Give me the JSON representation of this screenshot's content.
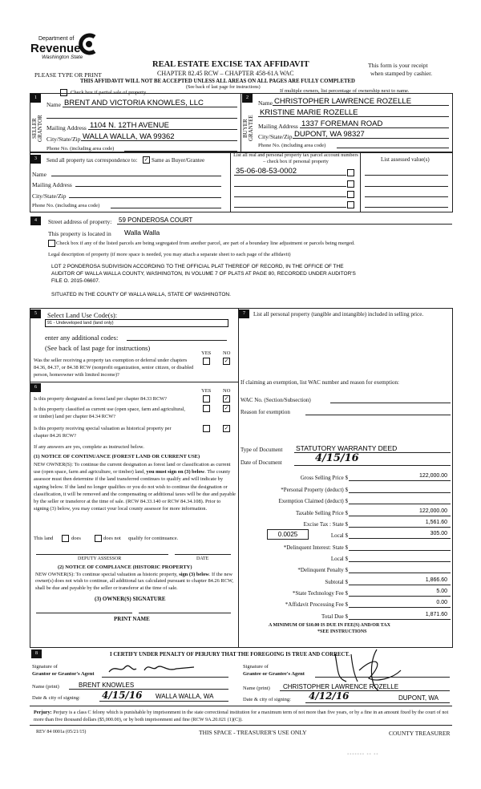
{
  "header": {
    "dept_of": "Department of",
    "revenue": "Revenue",
    "state": "Washington State",
    "title": "REAL ESTATE EXCISE TAX AFFIDAVIT",
    "chapter": "CHAPTER 82.45 RCW – CHAPTER 458-61A WAC",
    "type_print": "PLEASE TYPE OR PRINT",
    "receipt1": "This form is your receipt",
    "receipt2": "when stamped by cashier.",
    "warning": "THIS AFFIDAVIT WILL NOT BE ACCEPTED UNLESS ALL AREAS ON ALL PAGES ARE FULLY COMPLETED",
    "see_back": "(See back of last page for instructions)",
    "partial_sale": "Check box if partial sale of property",
    "multiple_owners": "If multiple owners, list percentage of ownership next to name."
  },
  "seller": {
    "num": "1",
    "side": "SELLER GRANTOR",
    "name_label": "Name",
    "name": "BRENT AND VICTORIA KNOWLES, LLC",
    "mail_label": "Mailing Address",
    "mail": "1104 N. 12TH AVENUE",
    "city_label": "City/State/Zip",
    "city": "WALLA WALLA, WA  99362",
    "phone_label": "Phone No. (including area code)"
  },
  "buyer": {
    "num": "2",
    "side": "BUYER GRANTEE",
    "name_label": "Name",
    "name": "CHRISTOPHER LAWRENCE ROZELLE",
    "name2": "KRISTINE MARIE ROZELLE",
    "mail_label": "Mailing Address",
    "mail": "1337 FOREMAN ROAD",
    "city_label": "City/State/Zip",
    "city": "DUPONT, WA  98327",
    "phone_label": "Phone No. (including area code)"
  },
  "sec3": {
    "num": "3",
    "send": "Send all property tax correspondence to:",
    "same": "Same as Buyer/Grantee",
    "same_checked": true,
    "name": "Name",
    "mail": "Mailing Address",
    "city": "City/State/Zip",
    "phone": "Phone No. (including area code)",
    "parcel_header": "List all real and personal property tax parcel account numbers – check box if personal property",
    "assessed_header": "List assessed value(s)",
    "parcel": "35-06-08-53-0002"
  },
  "sec4": {
    "num": "4",
    "street_label": "Street address of property:",
    "street": "59 PONDEROSA COURT",
    "located_label": "This property is located in",
    "located": "Walla Walla",
    "segregated": "Check box if any of the listed parcels are being segregated from another parcel, are part of a boundary line adjustment or parcels being merged.",
    "legal_label": "Legal description of property (if more space is needed, you may attach a separate sheet to each page of the affidavit)",
    "legal1": "LOT 2 PONDEROSA SUDIVISION ACCORDING TO THE OFFICIAL PLAT THEREOF OF RECORD, IN THE OFFICE OF THE",
    "legal2": "AUDITOR OF WALLA WALLA COUNTY, WASHINGTON, IN VOLUME 7 OF PLATS AT PAGE 80, RECORDED UNDER AUDITOR'S",
    "legal3": "FILE O. 2015-06607.",
    "legal4": "SITUATED IN THE COUNTY OF WALLA WALLA, STATE OF WASHINGTON."
  },
  "sec5": {
    "num": "5",
    "select": "Select Land Use Code(s):",
    "code": "91 - Undeveloped land (land only)",
    "additional": "enter any additional codes:",
    "see_back": "(See back of last page for instructions)",
    "yes": "YES",
    "no": "NO",
    "question": "Was the seller receiving a property tax exemption or deferral under chapters 84.36, 84.37, or 84.38 RCW (nonprofit organization, senior citizen, or disabled person, homeowner with limited income)?"
  },
  "sec6": {
    "num": "6",
    "yes": "YES",
    "no": "NO",
    "q1": "Is this property designated as forest land per chapter 84.33 RCW?",
    "q2": "Is this property classified as current use (open space, farm and agricultural, or timber) land per chapter 84.34 RCW?",
    "q3": "Is this property receiving special valuation as historical property per chapter 84.26 RCW?",
    "if_yes": "If any answers are yes, complete as instructed below.",
    "n1_title": "(1) NOTICE OF CONTINUANCE  (FOREST LAND OR CURRENT USE)",
    "n1_a": "NEW OWNER(S): To continue the current designation as forest land or classification as current use (open space, farm and agriculture, or timber) land, ",
    "n1_bold": "you must sign on (3) below",
    "n1_b": ". The county assessor must then determine if the land transferred continues to qualify and will indicate by signing below. If the land no longer qualifies or you do not wish to continue the designation or classification, it will be removed and the compensating or additional taxes will be due and payable by the seller or transferor at the time of sale. (RCW 84.33.140 or RCW 84.34.108). Prior to signing (3) below, you may contact your local county assessor for more information.",
    "this_land": "This land",
    "does": "does",
    "does_not": "does not",
    "qualify": "qualify for continuance.",
    "deputy": "DEPUTY ASSESSOR",
    "date": "DATE",
    "n2_title": "(2) NOTICE OF COMPLIANCE (HISTORIC PROPERTY)",
    "n2_a": "NEW OWNER(S): To continue special valuation as historic property, ",
    "n2_bold": "sign (3) below",
    "n2_b": ". If the new owner(s) does not wish to continue, all additional tax calculated pursuant to chapter 84.26 RCW, shall be due and payable by the seller or transferor at the time of sale.",
    "n3_title": "(3)  OWNER(S) SIGNATURE",
    "print_name": "PRINT NAME"
  },
  "sec7": {
    "num": "7",
    "list": "List all  personal property (tangible and intangible) included in selling price.",
    "claiming": "If claiming an exemption, list WAC number and reason for exemption:",
    "wac": "WAC No. (Section/Subsection)",
    "reason": "Reason for exemption",
    "doc_type_label": "Type of Document",
    "doc_type": "STATUTORY WARRANTY DEED",
    "doc_date_label": "Date of Document",
    "doc_date": "4/15/16",
    "local_rate": "0.0025",
    "rows": [
      {
        "label": "Gross Selling Price $",
        "value": "122,000.00"
      },
      {
        "label": "*Personal Property (deduct) $",
        "value": ""
      },
      {
        "label": "Exemption Claimed (deduct) $",
        "value": ""
      },
      {
        "label": "Taxable Selling Price $",
        "value": "122,000.00"
      },
      {
        "label": "Excise Tax : State $",
        "value": "1,561.60"
      },
      {
        "label": "Local $",
        "value": "305.00"
      },
      {
        "label": "*Delinquent Interest: State $",
        "value": ""
      },
      {
        "label": "Local $",
        "value": ""
      },
      {
        "label": "*Delinquent Penalty $",
        "value": ""
      },
      {
        "label": "Subtotal $",
        "value": "1,866.60"
      },
      {
        "label": "*State Technology Fee $",
        "value": "5.00"
      },
      {
        "label": "*Affidavit Processing Fee $",
        "value": "0.00"
      },
      {
        "label": "Total Due $",
        "value": "1,871.60"
      }
    ],
    "minimum": "A MINIMUM OF $10.00 IS DUE IN FEE(S) AND/OR TAX",
    "see_instr": "*SEE INSTRUCTIONS"
  },
  "sec8": {
    "num": "8",
    "certify": "I CERTIFY UNDER PENALTY OF PERJURY THAT THE FOREGOING IS TRUE AND CORRECT.",
    "sig_of": "Signature of",
    "grantor_agent": "Grantor or Grantor's Agent",
    "grantee_agent": "Grantee or Grantee's Agent",
    "name_print": "Name (print)",
    "date_city": "Date & city of signing:",
    "grantor_name": "BRENT KNOWLES",
    "grantor_date": "4/15/16",
    "grantor_city": "WALLA WALLA, WA",
    "grantee_name": "CHRISTOPHER LAWRENCE ROZELLE",
    "grantee_date": "4/12/16",
    "grantee_city": "DUPONT, WA"
  },
  "footer": {
    "perjury_bold": "Perjury:",
    "perjury": " Perjury is a class C felony which is punishable by imprisonment in the state correctional institution for a maximum term of not more than five years, or by a fine in an amount fixed by the court of not more than five thousand dollars ($5,000.00), or by both imprisonment and fine (RCW 9A.20.021 (1)(C)).",
    "rev": "REV 84 0001a (05/21/15)",
    "treasurer_use": "THIS SPACE - TREASURER'S USE ONLY",
    "county_treasurer": "COUNTY TREASURER"
  }
}
